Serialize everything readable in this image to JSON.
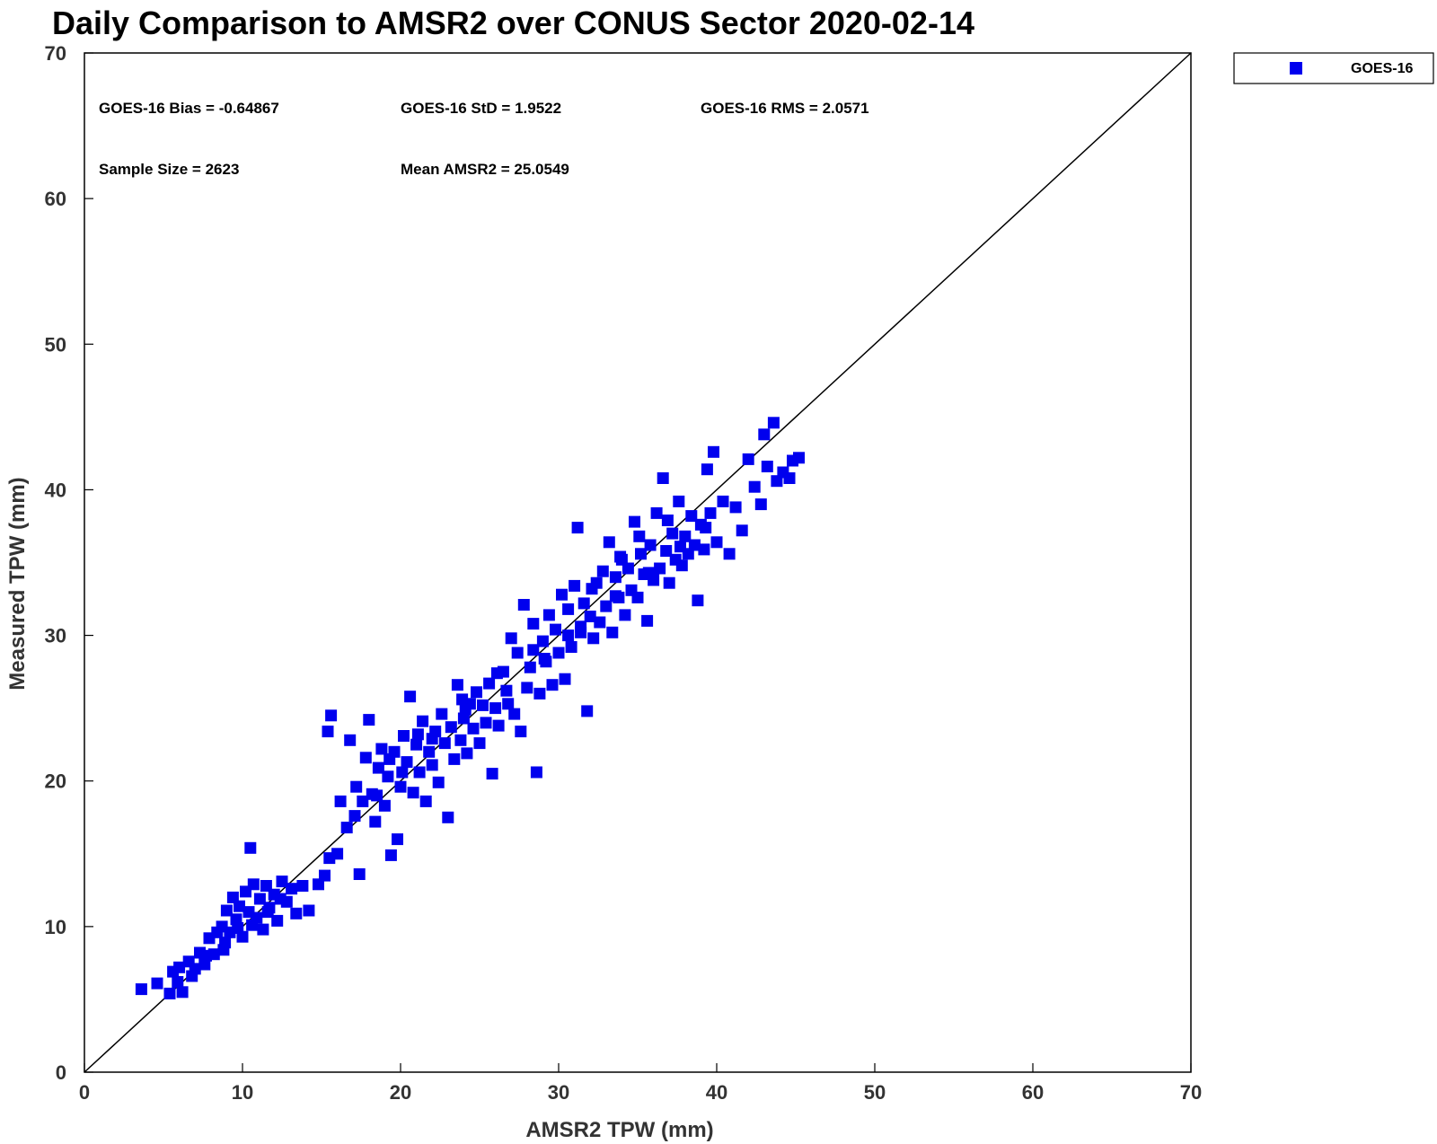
{
  "chart_data": {
    "type": "scatter",
    "title": "Daily Comparison to AMSR2 over CONUS Sector 2020-02-14",
    "xlabel": "AMSR2 TPW (mm)",
    "ylabel": "Measured TPW (mm)",
    "xlim": [
      0,
      70
    ],
    "ylim": [
      0,
      70
    ],
    "xticks": [
      "0",
      "10",
      "20",
      "30",
      "40",
      "50",
      "60",
      "70"
    ],
    "yticks": [
      "0",
      "10",
      "20",
      "30",
      "40",
      "50",
      "60",
      "70"
    ],
    "grid": false,
    "legend_position": "top-right",
    "reference_line": "1:1",
    "colors": {
      "series": "#0000ee",
      "line": "#000000"
    },
    "stats": {
      "bias": "GOES-16 Bias = -0.64867",
      "std": "GOES-16 StD = 1.9522",
      "rms": "GOES-16 RMS = 2.0571",
      "sample": "Sample Size = 2623",
      "mean": "Mean AMSR2 = 25.0549"
    },
    "series": [
      {
        "name": "GOES-16",
        "marker": "square",
        "points": [
          [
            3.6,
            5.7
          ],
          [
            4.6,
            6.1
          ],
          [
            5.4,
            5.4
          ],
          [
            5.6,
            6.9
          ],
          [
            6.2,
            5.5
          ],
          [
            6.0,
            7.2
          ],
          [
            6.6,
            7.6
          ],
          [
            7.0,
            7.1
          ],
          [
            7.3,
            8.2
          ],
          [
            7.6,
            7.4
          ],
          [
            7.9,
            9.2
          ],
          [
            8.2,
            8.1
          ],
          [
            8.4,
            9.6
          ],
          [
            8.7,
            10.0
          ],
          [
            8.8,
            8.4
          ],
          [
            9.0,
            11.1
          ],
          [
            9.2,
            9.6
          ],
          [
            9.4,
            12.0
          ],
          [
            9.6,
            10.5
          ],
          [
            9.8,
            11.4
          ],
          [
            10.0,
            9.3
          ],
          [
            10.2,
            12.4
          ],
          [
            10.4,
            11.0
          ],
          [
            10.5,
            15.4
          ],
          [
            10.7,
            12.9
          ],
          [
            10.9,
            10.6
          ],
          [
            11.1,
            11.9
          ],
          [
            11.3,
            9.8
          ],
          [
            11.5,
            12.8
          ],
          [
            11.7,
            11.3
          ],
          [
            12.0,
            12.2
          ],
          [
            12.2,
            10.4
          ],
          [
            12.5,
            13.1
          ],
          [
            12.8,
            11.7
          ],
          [
            13.1,
            12.6
          ],
          [
            13.4,
            10.9
          ],
          [
            13.8,
            12.8
          ],
          [
            14.2,
            11.1
          ],
          [
            14.8,
            12.9
          ],
          [
            15.2,
            13.5
          ],
          [
            15.4,
            23.4
          ],
          [
            15.6,
            24.5
          ],
          [
            15.5,
            14.7
          ],
          [
            16.0,
            15.0
          ],
          [
            16.2,
            18.6
          ],
          [
            16.6,
            16.8
          ],
          [
            16.8,
            22.8
          ],
          [
            17.1,
            17.6
          ],
          [
            17.4,
            13.6
          ],
          [
            17.6,
            18.6
          ],
          [
            17.8,
            21.6
          ],
          [
            18.0,
            24.2
          ],
          [
            18.2,
            19.1
          ],
          [
            18.4,
            17.2
          ],
          [
            18.6,
            20.9
          ],
          [
            18.8,
            22.2
          ],
          [
            19.0,
            18.3
          ],
          [
            19.2,
            20.3
          ],
          [
            19.4,
            14.9
          ],
          [
            19.6,
            22.0
          ],
          [
            19.8,
            16.0
          ],
          [
            20.0,
            19.6
          ],
          [
            20.2,
            23.1
          ],
          [
            20.4,
            21.3
          ],
          [
            20.6,
            25.8
          ],
          [
            20.8,
            19.2
          ],
          [
            21.0,
            22.5
          ],
          [
            21.2,
            20.6
          ],
          [
            21.4,
            24.1
          ],
          [
            21.6,
            18.6
          ],
          [
            21.8,
            22.0
          ],
          [
            22.0,
            21.1
          ],
          [
            22.2,
            23.4
          ],
          [
            22.4,
            19.9
          ],
          [
            22.6,
            24.6
          ],
          [
            22.8,
            22.6
          ],
          [
            23.0,
            17.5
          ],
          [
            23.2,
            23.7
          ],
          [
            23.4,
            21.5
          ],
          [
            23.6,
            26.6
          ],
          [
            23.8,
            22.8
          ],
          [
            24.0,
            24.3
          ],
          [
            24.2,
            21.9
          ],
          [
            24.4,
            25.3
          ],
          [
            24.6,
            23.6
          ],
          [
            24.8,
            26.1
          ],
          [
            25.0,
            22.6
          ],
          [
            25.2,
            25.2
          ],
          [
            25.4,
            24.0
          ],
          [
            25.6,
            26.7
          ],
          [
            25.8,
            20.5
          ],
          [
            26.0,
            25.0
          ],
          [
            26.2,
            23.8
          ],
          [
            26.5,
            27.5
          ],
          [
            26.8,
            25.3
          ],
          [
            27.0,
            29.8
          ],
          [
            27.2,
            24.6
          ],
          [
            27.4,
            28.8
          ],
          [
            27.6,
            23.4
          ],
          [
            27.8,
            32.1
          ],
          [
            28.0,
            26.4
          ],
          [
            28.2,
            27.8
          ],
          [
            28.4,
            30.8
          ],
          [
            28.6,
            20.6
          ],
          [
            28.8,
            26.0
          ],
          [
            29.0,
            29.6
          ],
          [
            29.2,
            28.2
          ],
          [
            29.4,
            31.4
          ],
          [
            29.6,
            26.6
          ],
          [
            29.8,
            30.4
          ],
          [
            30.0,
            28.8
          ],
          [
            30.2,
            32.8
          ],
          [
            30.4,
            27.0
          ],
          [
            30.6,
            30.0
          ],
          [
            30.8,
            29.2
          ],
          [
            31.0,
            33.4
          ],
          [
            31.2,
            37.4
          ],
          [
            31.4,
            30.6
          ],
          [
            31.6,
            32.2
          ],
          [
            31.8,
            24.8
          ],
          [
            32.0,
            31.3
          ],
          [
            32.2,
            29.8
          ],
          [
            32.4,
            33.6
          ],
          [
            32.6,
            30.9
          ],
          [
            32.8,
            34.4
          ],
          [
            33.0,
            32.0
          ],
          [
            33.2,
            36.4
          ],
          [
            33.4,
            30.2
          ],
          [
            33.6,
            34.0
          ],
          [
            33.8,
            32.6
          ],
          [
            34.0,
            35.2
          ],
          [
            34.2,
            31.4
          ],
          [
            34.4,
            34.6
          ],
          [
            34.6,
            33.1
          ],
          [
            34.8,
            37.8
          ],
          [
            35.0,
            32.6
          ],
          [
            35.2,
            35.6
          ],
          [
            35.4,
            34.2
          ],
          [
            35.6,
            31.0
          ],
          [
            35.8,
            36.2
          ],
          [
            36.0,
            33.8
          ],
          [
            36.2,
            38.4
          ],
          [
            36.4,
            34.6
          ],
          [
            36.6,
            40.8
          ],
          [
            36.8,
            35.8
          ],
          [
            37.0,
            33.6
          ],
          [
            37.2,
            37.0
          ],
          [
            37.4,
            35.2
          ],
          [
            37.6,
            39.2
          ],
          [
            37.8,
            34.8
          ],
          [
            38.0,
            36.8
          ],
          [
            38.2,
            35.6
          ],
          [
            38.4,
            38.2
          ],
          [
            38.6,
            36.2
          ],
          [
            38.8,
            32.4
          ],
          [
            39.0,
            37.6
          ],
          [
            39.2,
            35.9
          ],
          [
            39.4,
            41.4
          ],
          [
            39.6,
            38.4
          ],
          [
            39.8,
            42.6
          ],
          [
            40.0,
            36.4
          ],
          [
            40.4,
            39.2
          ],
          [
            40.8,
            35.6
          ],
          [
            41.2,
            38.8
          ],
          [
            41.6,
            37.2
          ],
          [
            42.0,
            42.1
          ],
          [
            42.4,
            40.2
          ],
          [
            42.8,
            39.0
          ],
          [
            43.0,
            43.8
          ],
          [
            43.2,
            41.6
          ],
          [
            43.6,
            44.6
          ],
          [
            43.8,
            40.6
          ],
          [
            44.2,
            41.2
          ],
          [
            44.6,
            40.8
          ],
          [
            44.8,
            42.0
          ],
          [
            45.2,
            42.2
          ],
          [
            17.2,
            19.6
          ],
          [
            19.3,
            21.5
          ],
          [
            21.1,
            23.2
          ],
          [
            23.9,
            25.6
          ],
          [
            26.1,
            27.4
          ],
          [
            28.4,
            29.0
          ],
          [
            30.6,
            31.8
          ],
          [
            32.1,
            33.2
          ],
          [
            33.9,
            35.4
          ],
          [
            35.1,
            36.8
          ],
          [
            36.9,
            37.9
          ],
          [
            18.5,
            19.0
          ],
          [
            20.1,
            20.6
          ],
          [
            22.0,
            22.9
          ],
          [
            24.1,
            24.9
          ],
          [
            26.7,
            26.2
          ],
          [
            29.1,
            28.4
          ],
          [
            31.4,
            30.2
          ],
          [
            33.6,
            32.7
          ],
          [
            35.7,
            34.3
          ],
          [
            37.7,
            36.1
          ],
          [
            39.3,
            37.4
          ],
          [
            8.9,
            8.9
          ],
          [
            9.7,
            9.9
          ],
          [
            10.6,
            10.1
          ],
          [
            11.6,
            11.0
          ],
          [
            12.4,
            11.9
          ],
          [
            6.8,
            6.6
          ],
          [
            7.7,
            8.0
          ],
          [
            5.9,
            6.2
          ]
        ]
      }
    ]
  }
}
